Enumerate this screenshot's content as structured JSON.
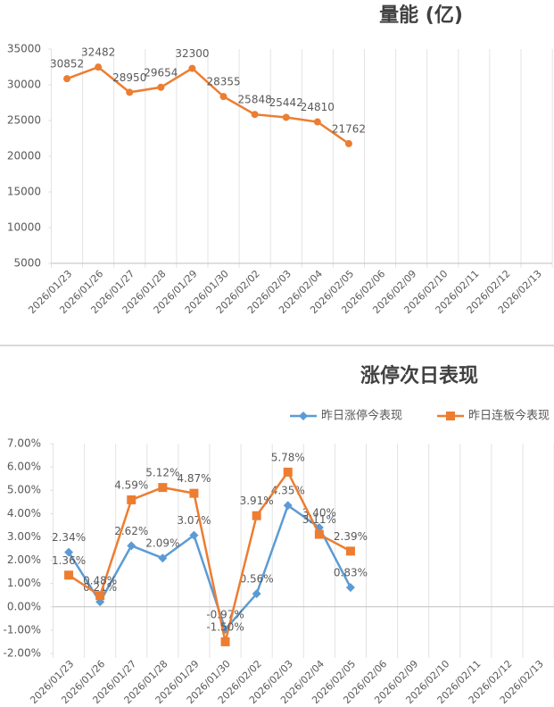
{
  "chart_data": [
    {
      "type": "line",
      "title": "量能 (亿)",
      "categories": [
        "2026/01/23",
        "2026/01/26",
        "2026/01/27",
        "2026/01/28",
        "2026/01/29",
        "2026/01/30",
        "2026/02/02",
        "2026/02/03",
        "2026/02/04",
        "2026/02/05",
        "2026/02/06",
        "2026/02/09",
        "2026/02/10",
        "2026/02/11",
        "2026/02/12",
        "2026/02/13"
      ],
      "values": [
        30852,
        32482,
        28950,
        29654,
        32300,
        28355,
        25848,
        25442,
        24810,
        21762,
        null,
        null,
        null,
        null,
        null,
        null
      ],
      "color": "#ed7d31",
      "marker": "circle",
      "ylim": [
        5000,
        35000
      ],
      "yticks": [
        5000,
        10000,
        15000,
        20000,
        25000,
        30000,
        35000
      ],
      "grid": true
    },
    {
      "type": "line",
      "title": "涨停次日表现",
      "categories": [
        "2026/01/23",
        "2026/01/26",
        "2026/01/27",
        "2026/01/28",
        "2026/01/29",
        "2026/01/30",
        "2026/02/02",
        "2026/02/03",
        "2026/02/04",
        "2026/02/05",
        "2026/02/06",
        "2026/02/09",
        "2026/02/10",
        "2026/02/11",
        "2026/02/12",
        "2026/02/13"
      ],
      "series": [
        {
          "name": "昨日涨停今表现",
          "color": "#5b9bd5",
          "marker": "diamond",
          "values": [
            2.34,
            0.21,
            2.62,
            2.09,
            3.07,
            -0.97,
            0.56,
            4.35,
            3.4,
            0.83,
            null,
            null,
            null,
            null,
            null,
            null
          ],
          "value_labels": [
            "2.34%",
            "0.21%",
            "2.62%",
            "2.09%",
            "3.07%",
            "-0.97%",
            "0.56%",
            "4.35%",
            "3.40%",
            "0.83%",
            null,
            null,
            null,
            null,
            null,
            null
          ]
        },
        {
          "name": "昨日连板今表现",
          "color": "#ed7d31",
          "marker": "square",
          "values": [
            1.36,
            0.48,
            4.59,
            5.12,
            4.87,
            -1.5,
            3.91,
            5.78,
            3.11,
            2.39,
            null,
            null,
            null,
            null,
            null,
            null
          ],
          "value_labels": [
            "1.36%",
            "0.48%",
            "4.59%",
            "5.12%",
            "4.87%",
            "-1.50%",
            "3.91%",
            "5.78%",
            "3.11%",
            "2.39%",
            null,
            null,
            null,
            null,
            null,
            null
          ]
        }
      ],
      "ylim": [
        -2,
        7
      ],
      "yticks": [
        {
          "value": -2,
          "label": "-2.00%"
        },
        {
          "value": -1,
          "label": "-1.00%"
        },
        {
          "value": 0,
          "label": "0.00%"
        },
        {
          "value": 1,
          "label": "1.00%"
        },
        {
          "value": 2,
          "label": "2.00%"
        },
        {
          "value": 3,
          "label": "3.00%"
        },
        {
          "value": 4,
          "label": "4.00%"
        },
        {
          "value": 5,
          "label": "5.00%"
        },
        {
          "value": 6,
          "label": "6.00%"
        },
        {
          "value": 7,
          "label": "7.00%"
        }
      ],
      "grid": true,
      "legend": "top-right"
    }
  ]
}
